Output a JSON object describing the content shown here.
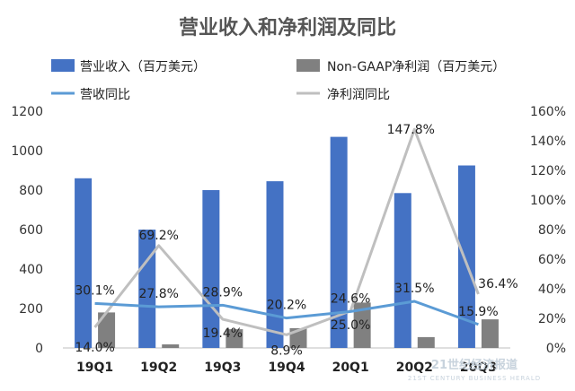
{
  "chart_data": {
    "type": "bar+line",
    "title": "营业收入和净利润及同比",
    "categories": [
      "19Q1",
      "19Q2",
      "19Q3",
      "19Q4",
      "20Q1",
      "20Q2",
      "20Q3"
    ],
    "bar_series": [
      {
        "name": "营业收入（百万美元）",
        "values": [
          860,
          600,
          800,
          845,
          1070,
          785,
          925
        ],
        "color": "#4472c4"
      },
      {
        "name": "Non-GAAP净利润（百万美元）",
        "values": [
          180,
          18,
          95,
          100,
          230,
          55,
          145
        ],
        "color": "#808080"
      }
    ],
    "line_series": [
      {
        "name": "营收同比",
        "values": [
          30.1,
          27.8,
          28.9,
          20.2,
          24.6,
          31.5,
          15.9
        ],
        "labels": [
          "30.1%",
          "27.8%",
          "28.9%",
          "20.2%",
          "24.6%",
          "31.5%",
          "15.9%"
        ],
        "color": "#5b9bd5"
      },
      {
        "name": "净利润同比",
        "values": [
          14.0,
          69.2,
          19.4,
          8.9,
          25.0,
          147.8,
          36.4
        ],
        "labels": [
          "14.0%",
          "69.2%",
          "19.4%",
          "8.9%",
          "25.0%",
          "147.8%",
          "36.4%"
        ],
        "color": "#bfbfbf"
      }
    ],
    "y_left": {
      "min": 0,
      "max": 1200,
      "ticks": [
        "0",
        "200",
        "400",
        "600",
        "800",
        "1000",
        "1200"
      ]
    },
    "y_right": {
      "min": 0,
      "max": 160,
      "ticks": [
        "0%",
        "20%",
        "40%",
        "60%",
        "80%",
        "100%",
        "120%",
        "140%",
        "160%"
      ]
    },
    "grid": false,
    "legend_position": "top"
  },
  "watermark": {
    "text": "21世纪经济报道",
    "sub": "21ST CENTURY BUSINESS HERALD"
  }
}
